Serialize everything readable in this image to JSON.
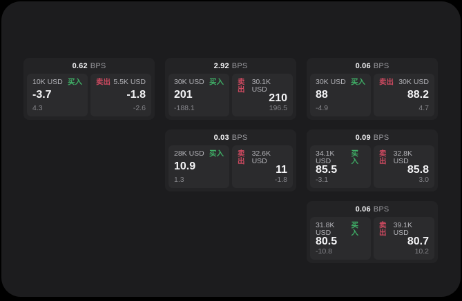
{
  "page": {
    "background_color": "#000000",
    "panel_color": "#1c1c1e",
    "card_color": "#232325",
    "tile_color": "#2b2b2d"
  },
  "colors": {
    "buy_green": "#3fae66",
    "sell_red": "#cf4a61",
    "value_white": "#f4f4f6",
    "label_gray": "#b3b3b8",
    "dim_gray": "#85858a"
  },
  "labels": {
    "buy": "买入",
    "sell": "卖出",
    "bps_suffix": "BPS"
  },
  "cards": [
    {
      "row": 1,
      "col": 1,
      "bps": "0.62",
      "buy": {
        "amount": "10K USD",
        "price": "-3.7",
        "delta": "4.3"
      },
      "sell": {
        "amount": "5.5K USD",
        "price": "-1.8",
        "delta": "-2.6"
      }
    },
    {
      "row": 1,
      "col": 2,
      "bps": "2.92",
      "buy": {
        "amount": "30K USD",
        "price": "201",
        "delta": "-188.1"
      },
      "sell": {
        "amount": "30.1K USD",
        "price": "210",
        "delta": "196.5"
      }
    },
    {
      "row": 1,
      "col": 3,
      "bps": "0.06",
      "buy": {
        "amount": "30K USD",
        "price": "88",
        "delta": "-4.9"
      },
      "sell": {
        "amount": "30K USD",
        "price": "88.2",
        "delta": "4.7"
      }
    },
    {
      "row": 2,
      "col": 2,
      "bps": "0.03",
      "buy": {
        "amount": "28K USD",
        "price": "10.9",
        "delta": "1.3"
      },
      "sell": {
        "amount": "32.6K USD",
        "price": "11",
        "delta": "-1.8"
      }
    },
    {
      "row": 2,
      "col": 3,
      "bps": "0.09",
      "buy": {
        "amount": "34.1K USD",
        "price": "85.5",
        "delta": "-3.1"
      },
      "sell": {
        "amount": "32.8K USD",
        "price": "85.8",
        "delta": "3.0"
      }
    },
    {
      "row": 3,
      "col": 3,
      "bps": "0.06",
      "buy": {
        "amount": "31.8K USD",
        "price": "80.5",
        "delta": "-10.8"
      },
      "sell": {
        "amount": "39.1K USD",
        "price": "80.7",
        "delta": "10.2"
      }
    }
  ]
}
